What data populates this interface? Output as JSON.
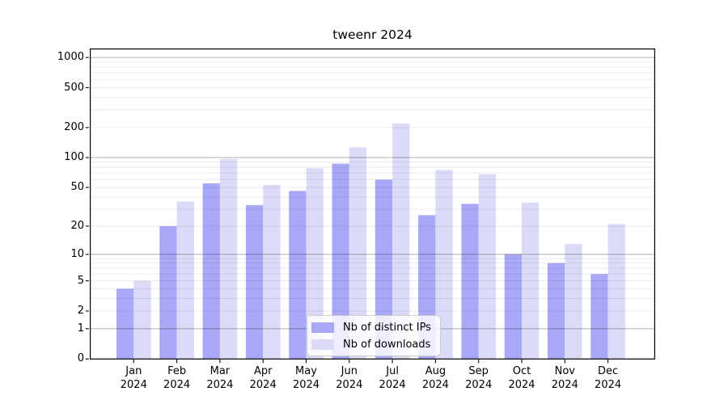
{
  "chart_data": {
    "type": "bar",
    "title": "tweenr 2024",
    "categories": [
      {
        "month": "Jan",
        "year": "2024"
      },
      {
        "month": "Feb",
        "year": "2024"
      },
      {
        "month": "Mar",
        "year": "2024"
      },
      {
        "month": "Apr",
        "year": "2024"
      },
      {
        "month": "May",
        "year": "2024"
      },
      {
        "month": "Jun",
        "year": "2024"
      },
      {
        "month": "Jul",
        "year": "2024"
      },
      {
        "month": "Aug",
        "year": "2024"
      },
      {
        "month": "Sep",
        "year": "2024"
      },
      {
        "month": "Oct",
        "year": "2024"
      },
      {
        "month": "Nov",
        "year": "2024"
      },
      {
        "month": "Dec",
        "year": "2024"
      }
    ],
    "series": [
      {
        "name": "Nb of distinct IPs",
        "color": "#a8a8f7",
        "values": [
          4,
          20,
          55,
          33,
          46,
          87,
          60,
          26,
          34,
          10,
          8,
          6
        ]
      },
      {
        "name": "Nb of downloads",
        "color": "#dbdbf8",
        "values": [
          5,
          36,
          97,
          53,
          78,
          127,
          220,
          75,
          68,
          35,
          13,
          21
        ]
      }
    ],
    "axis": {
      "scale": "log1p",
      "top_value": 1230,
      "yticks": [
        {
          "value": 1000,
          "label": "1000"
        },
        {
          "value": 500,
          "label": "500"
        },
        {
          "value": 200,
          "label": "200"
        },
        {
          "value": 100,
          "label": "100"
        },
        {
          "value": 50,
          "label": "50"
        },
        {
          "value": 20,
          "label": "20"
        },
        {
          "value": 10,
          "label": "10"
        },
        {
          "value": 5,
          "label": "5"
        },
        {
          "value": 2,
          "label": "2"
        },
        {
          "value": 1,
          "label": "1"
        },
        {
          "value": 0,
          "label": "0"
        }
      ],
      "major_gridlines": [
        1,
        10,
        100,
        1000
      ],
      "minor_gridlines": [
        2,
        3,
        4,
        5,
        6,
        7,
        8,
        9,
        20,
        30,
        40,
        50,
        60,
        70,
        80,
        90,
        200,
        300,
        400,
        500,
        600,
        700,
        800,
        900
      ]
    },
    "grid": "on",
    "legend_position": "bottom-center"
  },
  "colors": {
    "major_grid": "rgba(0,0,0,0.31)",
    "minor_grid": "rgba(0,0,0,0.08)",
    "spine": "#000000",
    "background": "#ffffff"
  }
}
